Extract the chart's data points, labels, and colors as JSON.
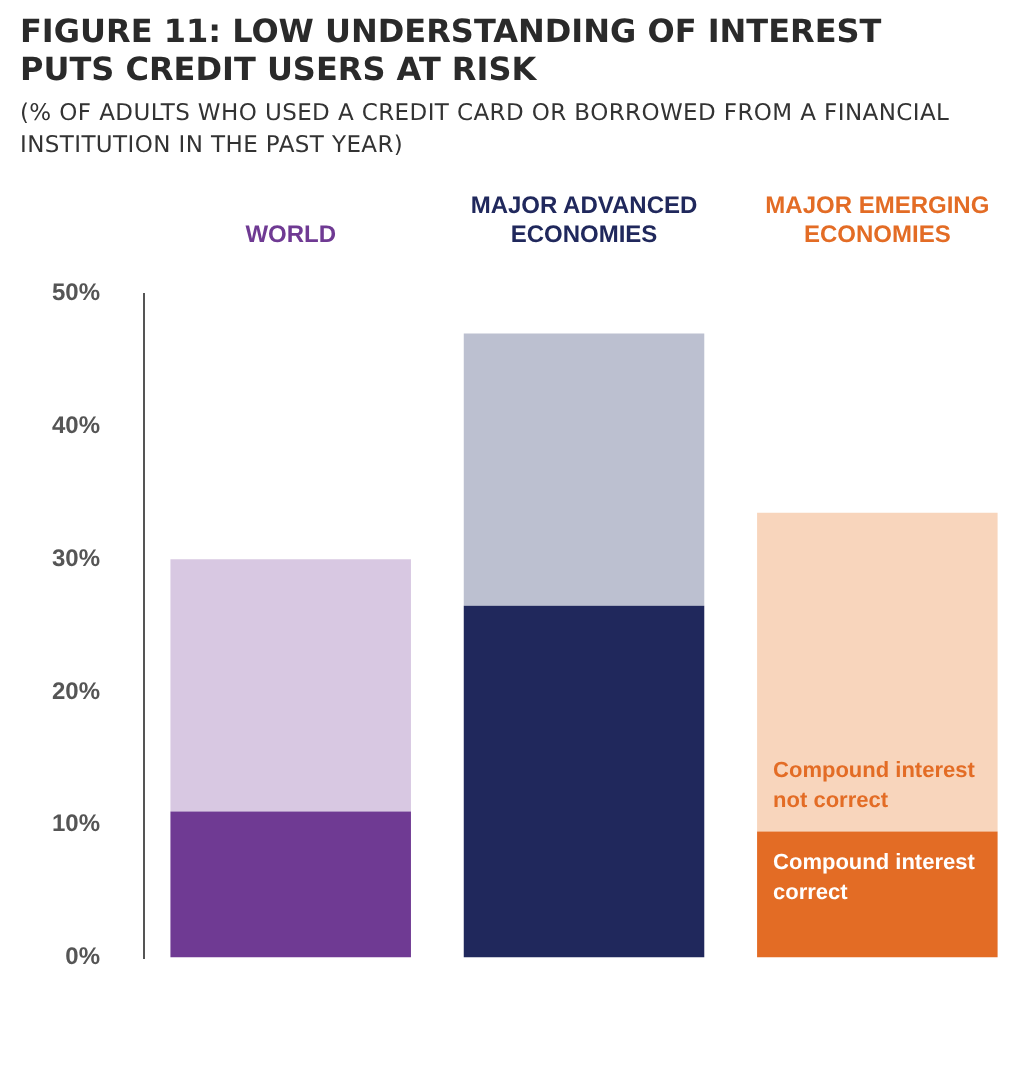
{
  "chart_data": {
    "type": "bar",
    "title": "FIGURE 11: LOW UNDERSTANDING OF INTEREST PUTS CREDIT USERS AT RISK",
    "subtitle": "(% OF ADULTS WHO USED A CREDIT CARD OR BORROWED FROM A FINANCIAL INSTITUTION IN THE PAST YEAR)",
    "categories": [
      "WORLD",
      "MAJOR ADVANCED ECONOMIES",
      "MAJOR EMERGING ECONOMIES"
    ],
    "stacked": true,
    "series": [
      {
        "name": "Compound interest correct",
        "colors": [
          "#6f3a93",
          "#20285c",
          "#e36c25"
        ],
        "values": [
          11,
          26.5,
          9.5
        ]
      },
      {
        "name": "Compound interest not correct",
        "colors": [
          "#d8c8e2",
          "#bcc0d0",
          "#f8d5bc"
        ],
        "values": [
          19,
          20.5,
          24
        ]
      }
    ],
    "ylim": [
      0,
      50
    ],
    "yticks": [
      {
        "value": 0,
        "label": "0%"
      },
      {
        "value": 10,
        "label": "10%"
      },
      {
        "value": 20,
        "label": "20%"
      },
      {
        "value": 30,
        "label": "30%"
      },
      {
        "value": 40,
        "label": "40%"
      },
      {
        "value": 50,
        "label": "50%"
      }
    ],
    "grid": false,
    "legend": false
  }
}
